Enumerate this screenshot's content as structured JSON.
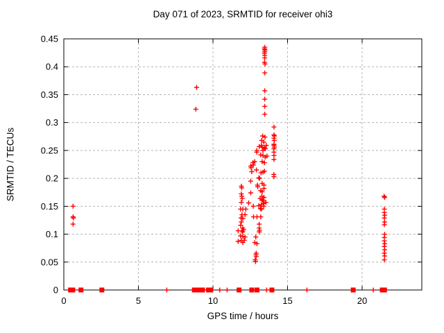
{
  "chart_data": {
    "type": "scatter",
    "title": "Day 071 of 2023, SRMTID for receiver ohi3",
    "xlabel": "GPS time / hours",
    "ylabel": "SRMTID / TECUs",
    "xlim": [
      0,
      24
    ],
    "ylim": [
      0,
      0.45
    ],
    "xticks": [
      0,
      5,
      10,
      15,
      20
    ],
    "xtick_labels": [
      "0",
      "5",
      "10",
      "15",
      "20"
    ],
    "yticks": [
      0,
      0.05,
      0.1,
      0.15,
      0.2,
      0.25,
      0.3,
      0.35,
      0.4,
      0.45
    ],
    "ytick_labels": [
      "0",
      "0.05",
      "0.1",
      "0.15",
      "0.2",
      "0.25",
      "0.3",
      "0.35",
      "0.4",
      "0.45"
    ],
    "grid": true,
    "legend": false,
    "marker": "plus",
    "marker_color": "#ff0000",
    "grid_color": "#b4b4b4",
    "axis_color": "#000000",
    "background": "#ffffff",
    "series": [
      {
        "name": "SRMTID",
        "points": [
          [
            0.62,
            0.15
          ],
          [
            0.62,
            0.131
          ],
          [
            0.64,
            0.129
          ],
          [
            0.62,
            0.118
          ],
          [
            8.9,
            0.363
          ],
          [
            8.85,
            0.324
          ],
          [
            11.69,
            0.106
          ],
          [
            11.69,
            0.087
          ],
          [
            11.9,
            0.186
          ],
          [
            11.93,
            0.183
          ],
          [
            11.9,
            0.172
          ],
          [
            11.93,
            0.168
          ],
          [
            11.96,
            0.164
          ],
          [
            11.9,
            0.157
          ],
          [
            12.39,
            0.156
          ],
          [
            11.85,
            0.145
          ],
          [
            12.0,
            0.145
          ],
          [
            12.2,
            0.145
          ],
          [
            11.95,
            0.135
          ],
          [
            12.15,
            0.135
          ],
          [
            11.88,
            0.129
          ],
          [
            12.0,
            0.128
          ],
          [
            11.9,
            0.122
          ],
          [
            11.85,
            0.116
          ],
          [
            12.0,
            0.111
          ],
          [
            12.05,
            0.108
          ],
          [
            11.95,
            0.106
          ],
          [
            12.0,
            0.104
          ],
          [
            11.85,
            0.097
          ],
          [
            12.0,
            0.096
          ],
          [
            12.15,
            0.095
          ],
          [
            11.9,
            0.089
          ],
          [
            12.1,
            0.089
          ],
          [
            12.0,
            0.085
          ],
          [
            12.53,
            0.222
          ],
          [
            12.56,
            0.219
          ],
          [
            12.6,
            0.212
          ],
          [
            12.68,
            0.228
          ],
          [
            12.79,
            0.23
          ],
          [
            12.7,
            0.224
          ],
          [
            12.53,
            0.195
          ],
          [
            12.53,
            0.174
          ],
          [
            12.7,
            0.15
          ],
          [
            12.72,
            0.131
          ],
          [
            12.87,
            0.095
          ],
          [
            12.8,
            0.085
          ],
          [
            12.95,
            0.083
          ],
          [
            12.9,
            0.066
          ],
          [
            12.88,
            0.063
          ],
          [
            12.9,
            0.06
          ],
          [
            12.83,
            0.054
          ],
          [
            12.85,
            0.051
          ],
          [
            12.91,
            0.215
          ],
          [
            12.94,
            0.25
          ],
          [
            12.93,
            0.247
          ],
          [
            12.95,
            0.131
          ],
          [
            12.98,
            0.188
          ],
          [
            13.0,
            0.185
          ],
          [
            13.07,
            0.151
          ],
          [
            13.08,
            0.201
          ],
          [
            13.12,
            0.2
          ],
          [
            13.1,
            0.257
          ],
          [
            13.1,
            0.118
          ],
          [
            13.1,
            0.111
          ],
          [
            13.12,
            0.107
          ],
          [
            13.1,
            0.104
          ],
          [
            13.16,
            0.164
          ],
          [
            13.18,
            0.146
          ],
          [
            13.2,
            0.242
          ],
          [
            13.2,
            0.178
          ],
          [
            13.2,
            0.131
          ],
          [
            13.22,
            0.21
          ],
          [
            13.24,
            0.259
          ],
          [
            13.24,
            0.153
          ],
          [
            13.25,
            0.145
          ],
          [
            13.26,
            0.268
          ],
          [
            13.28,
            0.168
          ],
          [
            13.3,
            0.256
          ],
          [
            13.3,
            0.23
          ],
          [
            13.3,
            0.191
          ],
          [
            13.3,
            0.176
          ],
          [
            13.3,
            0.162
          ],
          [
            13.33,
            0.276
          ],
          [
            13.35,
            0.25
          ],
          [
            13.35,
            0.241
          ],
          [
            13.35,
            0.211
          ],
          [
            13.36,
            0.16
          ],
          [
            13.4,
            0.15
          ],
          [
            13.41,
            0.265
          ],
          [
            13.42,
            0.188
          ],
          [
            13.42,
            0.182
          ],
          [
            13.42,
            0.166
          ],
          [
            13.42,
            0.155
          ],
          [
            13.44,
            0.255
          ],
          [
            13.45,
            0.228
          ],
          [
            13.45,
            0.213
          ],
          [
            13.45,
            0.432
          ],
          [
            13.45,
            0.424
          ],
          [
            13.45,
            0.408
          ],
          [
            13.47,
            0.435
          ],
          [
            13.47,
            0.427
          ],
          [
            13.47,
            0.42
          ],
          [
            13.47,
            0.416
          ],
          [
            13.47,
            0.389
          ],
          [
            13.47,
            0.357
          ],
          [
            13.47,
            0.342
          ],
          [
            13.47,
            0.329
          ],
          [
            13.47,
            0.315
          ],
          [
            13.49,
            0.43
          ],
          [
            13.49,
            0.405
          ],
          [
            13.49,
            0.274
          ],
          [
            13.5,
            0.253
          ],
          [
            13.5,
            0.238
          ],
          [
            13.55,
            0.157
          ],
          [
            13.57,
            0.259
          ],
          [
            13.62,
            0.24
          ],
          [
            14.09,
            0.292
          ],
          [
            14.09,
            0.278
          ],
          [
            14.11,
            0.276
          ],
          [
            14.09,
            0.272
          ],
          [
            14.11,
            0.268
          ],
          [
            14.09,
            0.261
          ],
          [
            14.09,
            0.259
          ],
          [
            14.11,
            0.256
          ],
          [
            14.09,
            0.253
          ],
          [
            14.09,
            0.247
          ],
          [
            14.09,
            0.241
          ],
          [
            14.09,
            0.234
          ],
          [
            14.08,
            0.207
          ],
          [
            14.09,
            0.203
          ],
          [
            21.47,
            0.168
          ],
          [
            21.51,
            0.166
          ],
          [
            21.49,
            0.145
          ],
          [
            21.49,
            0.139
          ],
          [
            21.51,
            0.134
          ],
          [
            21.49,
            0.129
          ],
          [
            21.51,
            0.122
          ],
          [
            21.49,
            0.117
          ],
          [
            21.51,
            0.1
          ],
          [
            21.49,
            0.094
          ],
          [
            21.49,
            0.088
          ],
          [
            21.51,
            0.083
          ],
          [
            21.49,
            0.078
          ],
          [
            21.51,
            0.072
          ],
          [
            21.49,
            0.066
          ],
          [
            21.51,
            0.061
          ],
          [
            21.49,
            0.054
          ],
          [
            0.45,
            0,
            "sq"
          ],
          [
            0.6,
            0,
            "sq"
          ],
          [
            1.15,
            0,
            "sq"
          ],
          [
            2.55,
            0,
            "sq"
          ],
          [
            6.9,
            0
          ],
          [
            8.75,
            0,
            "sq"
          ],
          [
            8.95,
            0,
            "sq"
          ],
          [
            9.15,
            0,
            "sq"
          ],
          [
            9.3,
            0,
            "sq"
          ],
          [
            9.7,
            0,
            "sq"
          ],
          [
            9.85,
            0,
            "sq"
          ],
          [
            10.45,
            0
          ],
          [
            10.95,
            0
          ],
          [
            11.75,
            0,
            "sq"
          ],
          [
            12.6,
            0,
            "sq"
          ],
          [
            12.95,
            0,
            "sq"
          ],
          [
            13.6,
            0
          ],
          [
            13.95,
            0,
            "sq"
          ],
          [
            16.3,
            0
          ],
          [
            19.4,
            0,
            "sq"
          ],
          [
            20.75,
            0
          ],
          [
            21.35,
            0,
            "sq"
          ],
          [
            21.5,
            0,
            "sq"
          ]
        ]
      }
    ]
  }
}
